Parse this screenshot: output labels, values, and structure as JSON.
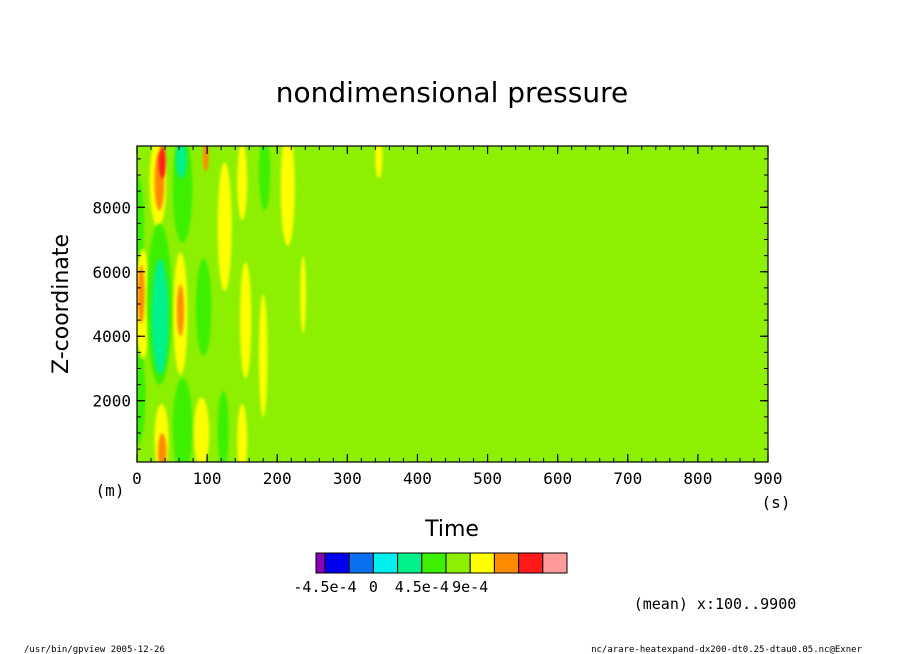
{
  "chart_data": {
    "type": "heatmap",
    "title": "nondimensional pressure",
    "xlabel": "Time",
    "ylabel": "Z-coordinate",
    "x_unit": "(s)",
    "y_unit": "(m)",
    "xlim": [
      0,
      900
    ],
    "ylim": [
      100,
      9900
    ],
    "x_ticks": [
      0,
      100,
      200,
      300,
      400,
      500,
      600,
      700,
      800,
      900
    ],
    "y_ticks": [
      2000,
      4000,
      6000,
      8000
    ],
    "background_level": 1,
    "levels": [
      -0.0009,
      -0.000675,
      -0.00045,
      -0.000225,
      0,
      0.000225,
      0.00045,
      0.000675,
      0.0009,
      0.001125,
      0.00135
    ],
    "colorbar": {
      "colors": [
        "#8a00b8",
        "#0000f0",
        "#0a70f0",
        "#00f0f0",
        "#00f08c",
        "#3cf000",
        "#8cf000",
        "#ffff00",
        "#ff8a00",
        "#ff1a1a",
        "#ff9a9a"
      ],
      "tick_labels": [
        "-4.5e-4",
        "0",
        "4.5e-4",
        "9e-4"
      ],
      "tick_boundaries": [
        1,
        3,
        5,
        7
      ]
    },
    "blobs": [
      {
        "t": 0,
        "z": 7500,
        "rt": 10,
        "rz": 1500,
        "level": 0
      },
      {
        "t": 0,
        "z": 2200,
        "rt": 12,
        "rz": 1600,
        "level": 0
      },
      {
        "t": 8,
        "z": 5000,
        "rt": 10,
        "rz": 1700,
        "level": 2
      },
      {
        "t": 6,
        "z": 5300,
        "rt": 5,
        "rz": 900,
        "level": 3
      },
      {
        "t": 30,
        "z": 8800,
        "rt": 12,
        "rz": 1400,
        "level": 2
      },
      {
        "t": 32,
        "z": 8800,
        "rt": 7,
        "rz": 900,
        "level": 3
      },
      {
        "t": 36,
        "z": 9400,
        "rt": 5,
        "rz": 500,
        "level": 4
      },
      {
        "t": 32,
        "z": 5000,
        "rt": 18,
        "rz": 2500,
        "level": 0
      },
      {
        "t": 33,
        "z": 4600,
        "rt": 12,
        "rz": 1800,
        "level": -1
      },
      {
        "t": 35,
        "z": 800,
        "rt": 10,
        "rz": 1100,
        "level": 2
      },
      {
        "t": 36,
        "z": 400,
        "rt": 6,
        "rz": 600,
        "level": 3
      },
      {
        "t": 65,
        "z": 8600,
        "rt": 14,
        "rz": 1700,
        "level": 0
      },
      {
        "t": 63,
        "z": 9500,
        "rt": 8,
        "rz": 600,
        "level": -1
      },
      {
        "t": 62,
        "z": 4700,
        "rt": 10,
        "rz": 1900,
        "level": 2
      },
      {
        "t": 62,
        "z": 4800,
        "rt": 5,
        "rz": 800,
        "level": 3
      },
      {
        "t": 65,
        "z": 1200,
        "rt": 14,
        "rz": 1500,
        "level": 0
      },
      {
        "t": 95,
        "z": 4900,
        "rt": 11,
        "rz": 1500,
        "level": 0
      },
      {
        "t": 92,
        "z": 1000,
        "rt": 11,
        "rz": 1100,
        "level": 2
      },
      {
        "t": 98,
        "z": 9600,
        "rt": 4,
        "rz": 500,
        "level": 3
      },
      {
        "t": 125,
        "z": 7400,
        "rt": 10,
        "rz": 2000,
        "level": 2
      },
      {
        "t": 123,
        "z": 1100,
        "rt": 8,
        "rz": 1200,
        "level": 0
      },
      {
        "t": 155,
        "z": 4500,
        "rt": 8,
        "rz": 1800,
        "level": 2
      },
      {
        "t": 150,
        "z": 8800,
        "rt": 7,
        "rz": 1200,
        "level": 2
      },
      {
        "t": 150,
        "z": 800,
        "rt": 7,
        "rz": 1100,
        "level": 2
      },
      {
        "t": 182,
        "z": 9100,
        "rt": 8,
        "rz": 1200,
        "level": 0
      },
      {
        "t": 180,
        "z": 3400,
        "rt": 6,
        "rz": 1900,
        "level": 2
      },
      {
        "t": 215,
        "z": 8600,
        "rt": 10,
        "rz": 1800,
        "level": 2
      },
      {
        "t": 237,
        "z": 5300,
        "rt": 4,
        "rz": 1200,
        "level": 2
      },
      {
        "t": 345,
        "z": 9500,
        "rt": 5,
        "rz": 600,
        "level": 2
      }
    ],
    "annotation_mean": "(mean) x:100..9900"
  },
  "footer": {
    "left": "/usr/bin/gpview  2005-12-26",
    "right": "nc/arare-heatexpand-dx200-dt0.25-dtau0.05.nc@Exner"
  }
}
